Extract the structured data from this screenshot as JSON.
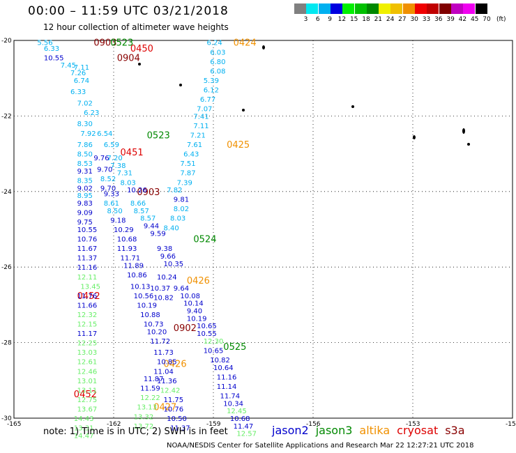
{
  "header": {
    "title": "00:00 – 11:59 UTC 03/21/2018",
    "subtitle": "12 hour collection of altimeter wave heights"
  },
  "legend": {
    "unit": "(ft)",
    "bins": [
      {
        "label": "3",
        "color": "#808080"
      },
      {
        "label": "6",
        "color": "#00e8f0"
      },
      {
        "label": "9",
        "color": "#00b0f0"
      },
      {
        "label": "12",
        "color": "#0000e0"
      },
      {
        "label": "15",
        "color": "#00f000"
      },
      {
        "label": "18",
        "color": "#00c000"
      },
      {
        "label": "21",
        "color": "#008800"
      },
      {
        "label": "24",
        "color": "#f0f000"
      },
      {
        "label": "27",
        "color": "#f0c000"
      },
      {
        "label": "30",
        "color": "#f09000"
      },
      {
        "label": "33",
        "color": "#f00000"
      },
      {
        "label": "36",
        "color": "#c00000"
      },
      {
        "label": "39",
        "color": "#800000"
      },
      {
        "label": "42",
        "color": "#c000c0"
      },
      {
        "label": "45",
        "color": "#f000f0"
      },
      {
        "label": "70",
        "color": "#000000"
      }
    ]
  },
  "axes": {
    "lat_labels": [
      "-20",
      "-22",
      "-24",
      "-26",
      "-28",
      "-30"
    ],
    "lon_labels": [
      "-165",
      "-162",
      "-159",
      "-156",
      "-153",
      "-15"
    ]
  },
  "footer": {
    "note": "note:  1) Time is in UTC;  2) SWH is in feet",
    "credit": "NOAA/NESDIS Center for Satellite Applications and Research   Mar 22 12:27:21 UTC 2018",
    "satellites": [
      {
        "name": "jason2",
        "color": "#0000cc"
      },
      {
        "name": "jason3",
        "color": "#008800"
      },
      {
        "name": "altika",
        "color": "#f09000"
      },
      {
        "name": "cryosat",
        "color": "#dd0000"
      },
      {
        "name": "s3a",
        "color": "#880000"
      }
    ]
  },
  "chart_data": {
    "type": "scatter",
    "title": "00:00 – 11:59 UTC 03/21/2018",
    "xlim": [
      -165,
      -150
    ],
    "ylim": [
      -30,
      -20
    ],
    "pass_labels": [
      {
        "text": "0903",
        "lon": -162.6,
        "lat": -20.05,
        "color": "#880000"
      },
      {
        "text": "0523",
        "lon": -162.1,
        "lat": -20.05,
        "color": "#008800"
      },
      {
        "text": "0450",
        "lon": -161.5,
        "lat": -20.2,
        "color": "#dd0000"
      },
      {
        "text": "0904",
        "lon": -161.9,
        "lat": -20.45,
        "color": "#880000"
      },
      {
        "text": "0424",
        "lon": -158.4,
        "lat": -20.05,
        "color": "#f09000"
      },
      {
        "text": "0523",
        "lon": -161.0,
        "lat": -22.5,
        "color": "#008800"
      },
      {
        "text": "0425",
        "lon": -158.6,
        "lat": -22.75,
        "color": "#f09000"
      },
      {
        "text": "0451",
        "lon": -161.8,
        "lat": -22.95,
        "color": "#dd0000"
      },
      {
        "text": "0903",
        "lon": -161.3,
        "lat": -24.0,
        "color": "#880000"
      },
      {
        "text": "0524",
        "lon": -159.6,
        "lat": -25.25,
        "color": "#008800"
      },
      {
        "text": "0426",
        "lon": -159.8,
        "lat": -26.35,
        "color": "#f09000"
      },
      {
        "text": "0452",
        "lon": -163.1,
        "lat": -26.75,
        "color": "#dd0000"
      },
      {
        "text": "0902",
        "lon": -160.2,
        "lat": -27.6,
        "color": "#880000"
      },
      {
        "text": "0525",
        "lon": -158.7,
        "lat": -28.1,
        "color": "#008800"
      },
      {
        "text": "0426",
        "lon": -160.5,
        "lat": -28.55,
        "color": "#f09000"
      },
      {
        "text": "0452",
        "lon": -163.2,
        "lat": -29.35,
        "color": "#dd0000"
      },
      {
        "text": "0427",
        "lon": -160.8,
        "lat": -29.7,
        "color": "#f09000"
      }
    ],
    "points": [
      {
        "v": "5.56",
        "lon": -164.3,
        "lat": -20.05,
        "c": "#00b0f0"
      },
      {
        "v": "6.33",
        "lon": -164.1,
        "lat": -20.2,
        "c": "#00b0f0"
      },
      {
        "v": "10.55",
        "lon": -164.1,
        "lat": -20.45,
        "c": "#0000cc"
      },
      {
        "v": "7.45",
        "lon": -163.6,
        "lat": -20.65,
        "c": "#00b0f0"
      },
      {
        "v": "7.11",
        "lon": -163.2,
        "lat": -20.7,
        "c": "#00b0f0"
      },
      {
        "v": "7.26",
        "lon": -163.3,
        "lat": -20.85,
        "c": "#00b0f0"
      },
      {
        "v": "6.74",
        "lon": -163.2,
        "lat": -21.05,
        "c": "#00b0f0"
      },
      {
        "v": "6.33",
        "lon": -163.3,
        "lat": -21.35,
        "c": "#00b0f0"
      },
      {
        "v": "7.02",
        "lon": -163.1,
        "lat": -21.65,
        "c": "#00b0f0"
      },
      {
        "v": "6.23",
        "lon": -162.9,
        "lat": -21.9,
        "c": "#00b0f0"
      },
      {
        "v": "8.30",
        "lon": -163.1,
        "lat": -22.2,
        "c": "#00b0f0"
      },
      {
        "v": "7.92",
        "lon": -163.0,
        "lat": -22.45,
        "c": "#00b0f0"
      },
      {
        "v": "6.54",
        "lon": -162.5,
        "lat": -22.45,
        "c": "#00b0f0"
      },
      {
        "v": "7.86",
        "lon": -163.1,
        "lat": -22.75,
        "c": "#00b0f0"
      },
      {
        "v": "6.59",
        "lon": -162.3,
        "lat": -22.75,
        "c": "#00b0f0"
      },
      {
        "v": "8.50",
        "lon": -163.1,
        "lat": -23.0,
        "c": "#00b0f0"
      },
      {
        "v": "9.76",
        "lon": -162.6,
        "lat": -23.1,
        "c": "#0000cc"
      },
      {
        "v": "7.20",
        "lon": -162.2,
        "lat": -23.1,
        "c": "#00b0f0"
      },
      {
        "v": "8.53",
        "lon": -163.1,
        "lat": -23.25,
        "c": "#00b0f0"
      },
      {
        "v": "7.38",
        "lon": -162.1,
        "lat": -23.3,
        "c": "#00b0f0"
      },
      {
        "v": "9.31",
        "lon": -163.1,
        "lat": -23.45,
        "c": "#0000cc"
      },
      {
        "v": "9.70",
        "lon": -162.5,
        "lat": -23.4,
        "c": "#0000cc"
      },
      {
        "v": "7.31",
        "lon": -161.9,
        "lat": -23.5,
        "c": "#00b0f0"
      },
      {
        "v": "8.35",
        "lon": -163.1,
        "lat": -23.7,
        "c": "#00b0f0"
      },
      {
        "v": "8.52",
        "lon": -162.4,
        "lat": -23.65,
        "c": "#00b0f0"
      },
      {
        "v": "8.03",
        "lon": -161.8,
        "lat": -23.75,
        "c": "#00b0f0"
      },
      {
        "v": "9.02",
        "lon": -163.1,
        "lat": -23.9,
        "c": "#0000cc"
      },
      {
        "v": "9.70",
        "lon": -162.4,
        "lat": -23.9,
        "c": "#0000cc"
      },
      {
        "v": "10.26",
        "lon": -161.6,
        "lat": -23.95,
        "c": "#0000cc"
      },
      {
        "v": "8.95",
        "lon": -163.1,
        "lat": -24.1,
        "c": "#00b0f0"
      },
      {
        "v": "9.33",
        "lon": -162.3,
        "lat": -24.05,
        "c": "#0000cc"
      },
      {
        "v": "7.82",
        "lon": -160.4,
        "lat": -23.95,
        "c": "#00b0f0"
      },
      {
        "v": "9.83",
        "lon": -163.1,
        "lat": -24.3,
        "c": "#0000cc"
      },
      {
        "v": "8.61",
        "lon": -162.3,
        "lat": -24.3,
        "c": "#00b0f0"
      },
      {
        "v": "8.66",
        "lon": -161.5,
        "lat": -24.3,
        "c": "#00b0f0"
      },
      {
        "v": "9.81",
        "lon": -160.2,
        "lat": -24.2,
        "c": "#0000cc"
      },
      {
        "v": "9.09",
        "lon": -163.1,
        "lat": -24.55,
        "c": "#0000cc"
      },
      {
        "v": "8.50",
        "lon": -162.2,
        "lat": -24.5,
        "c": "#00b0f0"
      },
      {
        "v": "8.57",
        "lon": -161.4,
        "lat": -24.5,
        "c": "#00b0f0"
      },
      {
        "v": "8.02",
        "lon": -160.2,
        "lat": -24.45,
        "c": "#00b0f0"
      },
      {
        "v": "9.75",
        "lon": -163.1,
        "lat": -24.8,
        "c": "#0000cc"
      },
      {
        "v": "9.18",
        "lon": -162.1,
        "lat": -24.75,
        "c": "#0000cc"
      },
      {
        "v": "8.57",
        "lon": -161.2,
        "lat": -24.7,
        "c": "#00b0f0"
      },
      {
        "v": "8.03",
        "lon": -160.3,
        "lat": -24.7,
        "c": "#00b0f0"
      },
      {
        "v": "10.55",
        "lon": -163.1,
        "lat": -25.0,
        "c": "#0000cc"
      },
      {
        "v": "10.29",
        "lon": -162.0,
        "lat": -25.0,
        "c": "#0000cc"
      },
      {
        "v": "9.44",
        "lon": -161.1,
        "lat": -24.9,
        "c": "#0000cc"
      },
      {
        "v": "8.40",
        "lon": -160.5,
        "lat": -24.95,
        "c": "#00b0f0"
      },
      {
        "v": "10.76",
        "lon": -163.1,
        "lat": -25.25,
        "c": "#0000cc"
      },
      {
        "v": "10.68",
        "lon": -161.9,
        "lat": -25.25,
        "c": "#0000cc"
      },
      {
        "v": "9.59",
        "lon": -160.9,
        "lat": -25.1,
        "c": "#0000cc"
      },
      {
        "v": "11.67",
        "lon": -163.1,
        "lat": -25.5,
        "c": "#0000cc"
      },
      {
        "v": "11.93",
        "lon": -161.9,
        "lat": -25.5,
        "c": "#0000cc"
      },
      {
        "v": "9.38",
        "lon": -160.7,
        "lat": -25.5,
        "c": "#0000cc"
      },
      {
        "v": "11.37",
        "lon": -163.1,
        "lat": -25.75,
        "c": "#0000cc"
      },
      {
        "v": "11.71",
        "lon": -161.8,
        "lat": -25.75,
        "c": "#0000cc"
      },
      {
        "v": "9.66",
        "lon": -160.6,
        "lat": -25.7,
        "c": "#0000cc"
      },
      {
        "v": "11.16",
        "lon": -163.1,
        "lat": -26.0,
        "c": "#0000cc"
      },
      {
        "v": "11.89",
        "lon": -161.7,
        "lat": -25.95,
        "c": "#0000cc"
      },
      {
        "v": "10.35",
        "lon": -160.5,
        "lat": -25.9,
        "c": "#0000cc"
      },
      {
        "v": "12.11",
        "lon": -163.1,
        "lat": -26.25,
        "c": "#66ee66"
      },
      {
        "v": "10.86",
        "lon": -161.6,
        "lat": -26.2,
        "c": "#0000cc"
      },
      {
        "v": "10.24",
        "lon": -160.7,
        "lat": -26.25,
        "c": "#0000cc"
      },
      {
        "v": "13.45",
        "lon": -163.0,
        "lat": -26.5,
        "c": "#66ee66"
      },
      {
        "v": "10.13",
        "lon": -161.5,
        "lat": -26.5,
        "c": "#0000cc"
      },
      {
        "v": "10.37",
        "lon": -160.9,
        "lat": -26.55,
        "c": "#0000cc"
      },
      {
        "v": "9.64",
        "lon": -160.2,
        "lat": -26.55,
        "c": "#0000cc"
      },
      {
        "v": "11.76",
        "lon": -163.1,
        "lat": -26.75,
        "c": "#0000cc"
      },
      {
        "v": "10.56",
        "lon": -161.4,
        "lat": -26.75,
        "c": "#0000cc"
      },
      {
        "v": "10.82",
        "lon": -160.8,
        "lat": -26.8,
        "c": "#0000cc"
      },
      {
        "v": "10.08",
        "lon": -160.0,
        "lat": -26.75,
        "c": "#0000cc"
      },
      {
        "v": "11.66",
        "lon": -163.1,
        "lat": -27.0,
        "c": "#0000cc"
      },
      {
        "v": "10.19",
        "lon": -161.3,
        "lat": -27.0,
        "c": "#0000cc"
      },
      {
        "v": "10.14",
        "lon": -159.9,
        "lat": -26.95,
        "c": "#0000cc"
      },
      {
        "v": "12.32",
        "lon": -163.1,
        "lat": -27.25,
        "c": "#66ee66"
      },
      {
        "v": "10.88",
        "lon": -161.2,
        "lat": -27.25,
        "c": "#0000cc"
      },
      {
        "v": "9.40",
        "lon": -159.8,
        "lat": -27.15,
        "c": "#0000cc"
      },
      {
        "v": "12.15",
        "lon": -163.1,
        "lat": -27.5,
        "c": "#66ee66"
      },
      {
        "v": "10.73",
        "lon": -161.1,
        "lat": -27.5,
        "c": "#0000cc"
      },
      {
        "v": "10.19",
        "lon": -159.8,
        "lat": -27.35,
        "c": "#0000cc"
      },
      {
        "v": "11.17",
        "lon": -163.1,
        "lat": -27.75,
        "c": "#0000cc"
      },
      {
        "v": "10.20",
        "lon": -161.0,
        "lat": -27.7,
        "c": "#0000cc"
      },
      {
        "v": "10.65",
        "lon": -159.5,
        "lat": -27.55,
        "c": "#0000cc"
      },
      {
        "v": "12.25",
        "lon": -163.1,
        "lat": -28.0,
        "c": "#66ee66"
      },
      {
        "v": "11.72",
        "lon": -160.9,
        "lat": -27.95,
        "c": "#0000cc"
      },
      {
        "v": "10.55",
        "lon": -159.5,
        "lat": -27.75,
        "c": "#0000cc"
      },
      {
        "v": "13.03",
        "lon": -163.1,
        "lat": -28.25,
        "c": "#66ee66"
      },
      {
        "v": "11.73",
        "lon": -160.8,
        "lat": -28.25,
        "c": "#0000cc"
      },
      {
        "v": "12.30",
        "lon": -159.3,
        "lat": -27.95,
        "c": "#66ee66"
      },
      {
        "v": "12.61",
        "lon": -163.1,
        "lat": -28.5,
        "c": "#66ee66"
      },
      {
        "v": "10.85",
        "lon": -160.7,
        "lat": -28.5,
        "c": "#0000cc"
      },
      {
        "v": "10.65",
        "lon": -159.3,
        "lat": -28.2,
        "c": "#0000cc"
      },
      {
        "v": "12.46",
        "lon": -163.1,
        "lat": -28.75,
        "c": "#66ee66"
      },
      {
        "v": "11.04",
        "lon": -160.8,
        "lat": -28.75,
        "c": "#0000cc"
      },
      {
        "v": "10.82",
        "lon": -159.1,
        "lat": -28.45,
        "c": "#0000cc"
      },
      {
        "v": "13.01",
        "lon": -163.1,
        "lat": -29.0,
        "c": "#66ee66"
      },
      {
        "v": "11.87",
        "lon": -161.1,
        "lat": -28.95,
        "c": "#0000cc"
      },
      {
        "v": "11.36",
        "lon": -160.7,
        "lat": -29.0,
        "c": "#0000cc"
      },
      {
        "v": "10.64",
        "lon": -159.0,
        "lat": -28.65,
        "c": "#0000cc"
      },
      {
        "v": "13.11",
        "lon": -163.1,
        "lat": -29.25,
        "c": "#66ee66"
      },
      {
        "v": "11.59",
        "lon": -161.2,
        "lat": -29.2,
        "c": "#0000cc"
      },
      {
        "v": "12.42",
        "lon": -160.6,
        "lat": -29.25,
        "c": "#66ee66"
      },
      {
        "v": "11.16",
        "lon": -158.9,
        "lat": -28.9,
        "c": "#0000cc"
      },
      {
        "v": "12.75",
        "lon": -163.1,
        "lat": -29.5,
        "c": "#66ee66"
      },
      {
        "v": "12.22",
        "lon": -161.2,
        "lat": -29.45,
        "c": "#66ee66"
      },
      {
        "v": "11.75",
        "lon": -160.5,
        "lat": -29.5,
        "c": "#0000cc"
      },
      {
        "v": "11.14",
        "lon": -158.9,
        "lat": -29.15,
        "c": "#0000cc"
      },
      {
        "v": "13.67",
        "lon": -163.1,
        "lat": -29.75,
        "c": "#66ee66"
      },
      {
        "v": "13.13",
        "lon": -161.3,
        "lat": -29.7,
        "c": "#66ee66"
      },
      {
        "v": "10.76",
        "lon": -160.5,
        "lat": -29.75,
        "c": "#0000cc"
      },
      {
        "v": "11.74",
        "lon": -158.8,
        "lat": -29.4,
        "c": "#0000cc"
      },
      {
        "v": "14.43",
        "lon": -163.2,
        "lat": -30.0,
        "c": "#66ee66"
      },
      {
        "v": "13.32",
        "lon": -161.4,
        "lat": -29.95,
        "c": "#66ee66"
      },
      {
        "v": "10.50",
        "lon": -160.4,
        "lat": -30.0,
        "c": "#0000cc"
      },
      {
        "v": "10.34",
        "lon": -158.7,
        "lat": -29.6,
        "c": "#0000cc"
      },
      {
        "v": "13.31",
        "lon": -163.2,
        "lat": -30.25,
        "c": "#66ee66"
      },
      {
        "v": "13.72",
        "lon": -161.4,
        "lat": -30.2,
        "c": "#66ee66"
      },
      {
        "v": "11.37",
        "lon": -160.3,
        "lat": -30.25,
        "c": "#0000cc"
      },
      {
        "v": "12.45",
        "lon": -158.6,
        "lat": -29.8,
        "c": "#66ee66"
      },
      {
        "v": "14.47",
        "lon": -163.2,
        "lat": -30.45,
        "c": "#66ee66"
      },
      {
        "v": "10.68",
        "lon": -158.5,
        "lat": -30.0,
        "c": "#0000cc"
      },
      {
        "v": "11.47",
        "lon": -158.4,
        "lat": -30.2,
        "c": "#0000cc"
      },
      {
        "v": "12.57",
        "lon": -158.3,
        "lat": -30.4,
        "c": "#66ee66"
      },
      {
        "v": "6.24",
        "lon": -159.2,
        "lat": -20.05,
        "c": "#00b0f0"
      },
      {
        "v": "6.03",
        "lon": -159.1,
        "lat": -20.3,
        "c": "#00b0f0"
      },
      {
        "v": "6.80",
        "lon": -159.1,
        "lat": -20.55,
        "c": "#00b0f0"
      },
      {
        "v": "6.08",
        "lon": -159.1,
        "lat": -20.8,
        "c": "#00b0f0"
      },
      {
        "v": "5.39",
        "lon": -159.3,
        "lat": -21.05,
        "c": "#00b0f0"
      },
      {
        "v": "6.12",
        "lon": -159.3,
        "lat": -21.3,
        "c": "#00b0f0"
      },
      {
        "v": "6.77",
        "lon": -159.4,
        "lat": -21.55,
        "c": "#00b0f0"
      },
      {
        "v": "7.07",
        "lon": -159.5,
        "lat": -21.8,
        "c": "#00b0f0"
      },
      {
        "v": "7.41",
        "lon": -159.6,
        "lat": -22.0,
        "c": "#00b0f0"
      },
      {
        "v": "7.11",
        "lon": -159.6,
        "lat": -22.25,
        "c": "#00b0f0"
      },
      {
        "v": "7.21",
        "lon": -159.7,
        "lat": -22.5,
        "c": "#00b0f0"
      },
      {
        "v": "7.61",
        "lon": -159.8,
        "lat": -22.75,
        "c": "#00b0f0"
      },
      {
        "v": "6.43",
        "lon": -159.9,
        "lat": -23.0,
        "c": "#00b0f0"
      },
      {
        "v": "7.51",
        "lon": -160.0,
        "lat": -23.25,
        "c": "#00b0f0"
      },
      {
        "v": "7.87",
        "lon": -160.0,
        "lat": -23.5,
        "c": "#00b0f0"
      },
      {
        "v": "7.39",
        "lon": -160.1,
        "lat": -23.75,
        "c": "#00b0f0"
      }
    ]
  }
}
